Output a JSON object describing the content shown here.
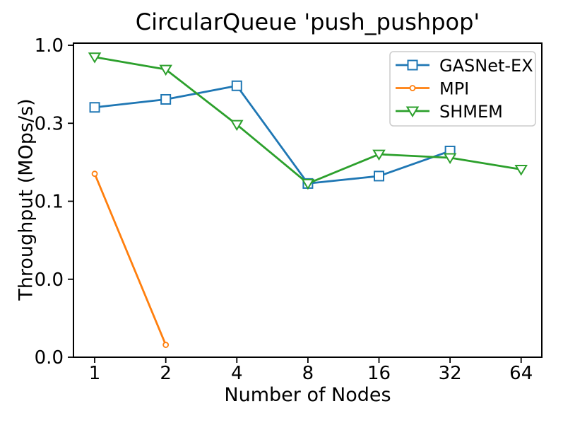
{
  "chart_data": {
    "type": "line",
    "title": "CircularQueue 'push_pushpop'",
    "xlabel": "Number of Nodes",
    "ylabel": "Throughput (MOps/s)",
    "xscale": "log2",
    "yscale": "log10",
    "xlim": [
      0.813,
      78.3
    ],
    "ylim": [
      0.01,
      1.032
    ],
    "grid": false,
    "x_ticks": [
      {
        "value": 1,
        "label": "1"
      },
      {
        "value": 2,
        "label": "2"
      },
      {
        "value": 4,
        "label": "4"
      },
      {
        "value": 8,
        "label": "8"
      },
      {
        "value": 16,
        "label": "16"
      },
      {
        "value": 32,
        "label": "32"
      },
      {
        "value": 64,
        "label": "64"
      }
    ],
    "y_ticks": [
      {
        "value": 1.0,
        "label": "1.0"
      },
      {
        "value": 0.3162,
        "label": "0.3"
      },
      {
        "value": 0.1,
        "label": "0.1"
      },
      {
        "value": 0.03162,
        "label": "0.0"
      },
      {
        "value": 0.01,
        "label": "0.0"
      }
    ],
    "legend": {
      "position": "upper-right",
      "entries": [
        "GASNet-EX",
        "MPI",
        "SHMEM"
      ]
    },
    "series": [
      {
        "name": "GASNet-EX",
        "color": "#1f77b4",
        "marker": "square",
        "x": [
          1,
          2,
          4,
          8,
          16,
          32
        ],
        "y": [
          0.4,
          0.45,
          0.55,
          0.13,
          0.145,
          0.21
        ]
      },
      {
        "name": "MPI",
        "color": "#ff7f0e",
        "marker": "circle",
        "x": [
          1,
          2
        ],
        "y": [
          0.15,
          0.012
        ]
      },
      {
        "name": "SHMEM",
        "color": "#2ca02c",
        "marker": "triangle-down",
        "x": [
          1,
          2,
          4,
          8,
          16,
          32,
          64
        ],
        "y": [
          0.84,
          0.7,
          0.31,
          0.13,
          0.2,
          0.19,
          0.16
        ]
      }
    ]
  }
}
